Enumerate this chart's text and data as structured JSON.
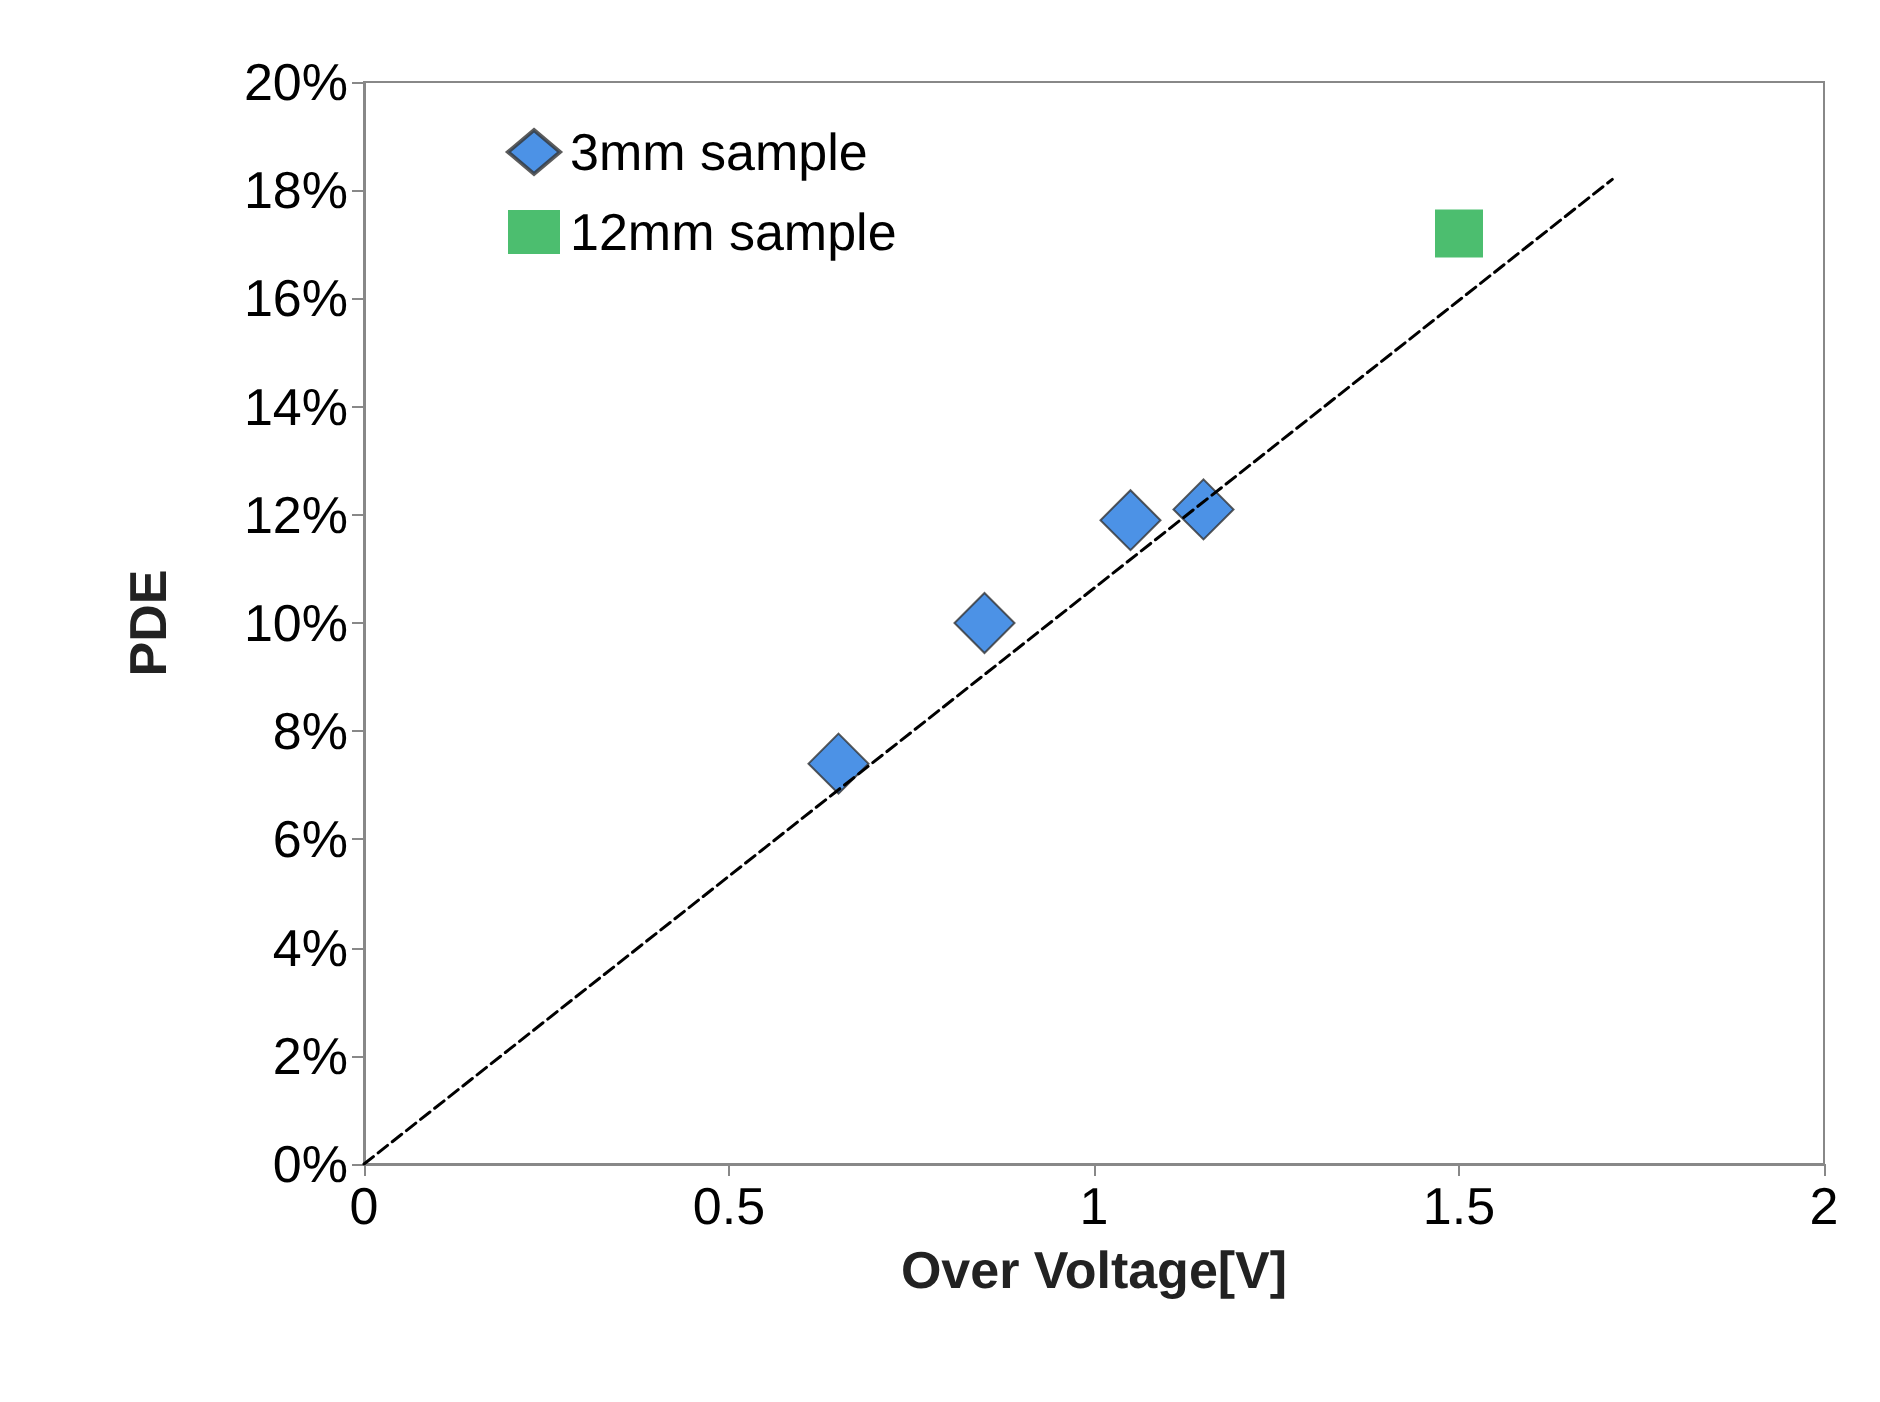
{
  "chart_data": {
    "type": "scatter",
    "xlabel": "Over Voltage[V]",
    "ylabel": "PDE",
    "xlim": [
      0,
      2
    ],
    "xticks": [
      0,
      0.5,
      1,
      1.5,
      2
    ],
    "ylim": [
      0,
      20
    ],
    "yticks": [
      {
        "value": 0,
        "label": "0%"
      },
      {
        "value": 2,
        "label": "2%"
      },
      {
        "value": 4,
        "label": "4%"
      },
      {
        "value": 6,
        "label": "6%"
      },
      {
        "value": 8,
        "label": "8%"
      },
      {
        "value": 10,
        "label": "10%"
      },
      {
        "value": 12,
        "label": "12%"
      },
      {
        "value": 14,
        "label": "14%"
      },
      {
        "value": 16,
        "label": "16%"
      },
      {
        "value": 18,
        "label": "18%"
      },
      {
        "value": 20,
        "label": "20%"
      }
    ],
    "grid": false,
    "legend": "top left",
    "series": [
      {
        "name": "3mm sample",
        "color": "#1f77e0",
        "marker": "diamond",
        "x": [
          0.65,
          0.85,
          1.05,
          1.15
        ],
        "values": [
          7.4,
          10.0,
          11.9,
          12.1
        ]
      },
      {
        "name": "12mm sample",
        "color": "#1fae4b",
        "marker": "square",
        "x": [
          1.5
        ],
        "values": [
          17.2
        ]
      },
      {
        "type": "line",
        "color": "#000000",
        "marker": "none",
        "line_style": "dashed",
        "x": [
          0,
          1.71
        ],
        "values": [
          0,
          18.2
        ]
      }
    ]
  }
}
